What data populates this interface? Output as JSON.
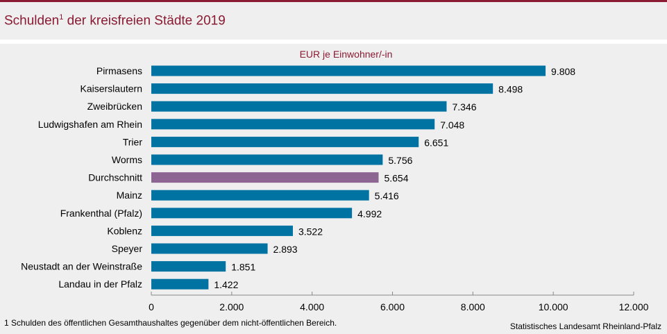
{
  "header": {
    "title": "Schulden",
    "title_sup": "1",
    "title_rest": " der kreisfreien Städte 2019"
  },
  "footnote": "1 Schulden des öffentlichen  Gesamthaushaltes gegenüber  dem nicht-öffentlichen  Bereich.",
  "source": "Statistisches Landesamt Rheinland-Pfalz",
  "chart_data": {
    "type": "bar",
    "orientation": "horizontal",
    "title": "Schulden der kreisfreien Städte 2019",
    "xlabel": "EUR je Einwohner/-in",
    "categories": [
      "Pirmasens",
      "Kaiserslautern",
      "Zweibrücken",
      "Ludwigshafen am Rhein",
      "Trier",
      "Worms",
      "Durchschnitt",
      "Mainz",
      "Frankenthal (Pfalz)",
      "Koblenz",
      "Speyer",
      "Neustadt an der Weinstraße",
      "Landau in der Pfalz"
    ],
    "values": [
      9808,
      8498,
      7346,
      7048,
      6651,
      5756,
      5654,
      5416,
      4992,
      3522,
      2893,
      1851,
      1422
    ],
    "labels": [
      "9.808",
      "8.498",
      "7.346",
      "7.048",
      "6.651",
      "5.756",
      "5.654",
      "5.416",
      "4.992",
      "3.522",
      "2.893",
      "1.851",
      "1.422"
    ],
    "highlight": "Durchschnitt",
    "xlim": [
      0,
      12000
    ],
    "xticks": [
      0,
      2000,
      4000,
      6000,
      8000,
      10000,
      12000
    ],
    "xtick_labels": [
      "0",
      "2.000",
      "4.000",
      "6.000",
      "8.000",
      "10.000",
      "12.000"
    ],
    "colors": {
      "bar": "#0073a3",
      "highlight": "#8c6593"
    }
  }
}
